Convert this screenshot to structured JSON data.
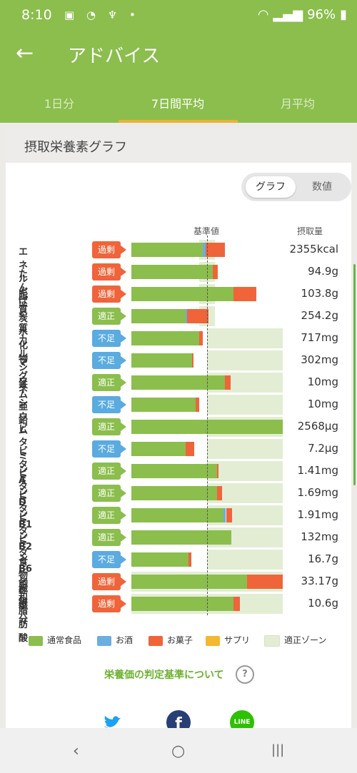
{
  "status": {
    "time": "8:10",
    "battery": "96%"
  },
  "appbar": {
    "title": "アドバイス"
  },
  "tabs": [
    {
      "label": "1日分"
    },
    {
      "label": "7日間平均"
    },
    {
      "label": "月平均"
    }
  ],
  "card": {
    "title": "摂取栄養素グラフ",
    "toggle": {
      "graph": "グラフ",
      "number": "数値"
    },
    "col_ref": "基準値",
    "col_intake": "摂取量"
  },
  "colors": {
    "normal_food": "#8bbe4d",
    "alcohol": "#6baee0",
    "snacks": "#f0643a",
    "supplement": "#f4b82e",
    "zone": "#e3edd4"
  },
  "chart_data": {
    "type": "bar",
    "categories": [
      "エネルギー",
      "たんぱく質",
      "脂質",
      "炭水化物",
      "カルシウム",
      "マグネシウム",
      "鉄",
      "亜鉛",
      "ビタミンA",
      "ビタミンD",
      "ビタミンB1",
      "ビタミンB2",
      "ビタミンB6",
      "ビタミンC",
      "食物繊維",
      "飽和脂肪酸",
      "塩分"
    ],
    "status": [
      "過剰",
      "過剰",
      "過剰",
      "適正",
      "不足",
      "不足",
      "適正",
      "不足",
      "適正",
      "不足",
      "適正",
      "適正",
      "適正",
      "適正",
      "不足",
      "過剰",
      "過剰"
    ],
    "values": [
      "2355kcal",
      "94.9g",
      "103.8g",
      "254.2g",
      "717mg",
      "302mg",
      "10mg",
      "10mg",
      "2568μg",
      "7.2μg",
      "1.41mg",
      "1.69mg",
      "1.91mg",
      "132mg",
      "16.7g",
      "33.17g",
      "10.6g"
    ],
    "series": [
      {
        "name": "通常食品",
        "values": [
          94,
          108,
          135,
          72,
          90,
          80,
          124,
          85,
          200,
          72,
          113,
          113,
          122,
          132,
          75,
          153,
          135
        ]
      },
      {
        "name": "お酒",
        "values": [
          4,
          0,
          0,
          2,
          0,
          0,
          0,
          0,
          0,
          0,
          0,
          0,
          3,
          0,
          0,
          0,
          0
        ]
      },
      {
        "name": "お菓子",
        "values": [
          26,
          6,
          30,
          28,
          4,
          2,
          7,
          5,
          0,
          11,
          2,
          7,
          8,
          0,
          4,
          47,
          8
        ]
      },
      {
        "name": "サプリ",
        "values": [
          0,
          0,
          0,
          0,
          0,
          0,
          0,
          0,
          0,
          0,
          0,
          0,
          0,
          0,
          0,
          0,
          0
        ]
      }
    ],
    "zone": [
      [
        90,
        110
      ],
      [
        90,
        110
      ],
      [
        90,
        110
      ],
      [
        90,
        110
      ],
      [
        100,
        200
      ],
      [
        100,
        200
      ],
      [
        100,
        200
      ],
      [
        100,
        200
      ],
      [
        100,
        200
      ],
      [
        100,
        200
      ],
      [
        100,
        200
      ],
      [
        100,
        200
      ],
      [
        100,
        200
      ],
      [
        100,
        200
      ],
      [
        100,
        200
      ],
      [
        0,
        200
      ],
      [
        0,
        200
      ]
    ],
    "reference": 100,
    "legend": [
      "通常食品",
      "お酒",
      "お菓子",
      "サプリ",
      "適正ゾーン"
    ]
  },
  "legend": [
    {
      "label": "通常食品",
      "color": "#8bbe4d"
    },
    {
      "label": "お酒",
      "color": "#6baee0"
    },
    {
      "label": "お菓子",
      "color": "#f0643a"
    },
    {
      "label": "サプリ",
      "color": "#f4b82e"
    },
    {
      "label": "適正ゾーン",
      "color": "#e3edd4"
    }
  ],
  "link": {
    "criteria": "栄養価の判定基準について",
    "help": "?"
  },
  "social": [
    {
      "name": "twitter"
    },
    {
      "name": "facebook",
      "glyph": "f"
    },
    {
      "name": "line",
      "text": "LINE"
    }
  ],
  "navbar": {
    "back": "‹",
    "home": "○",
    "recent": "|||"
  }
}
